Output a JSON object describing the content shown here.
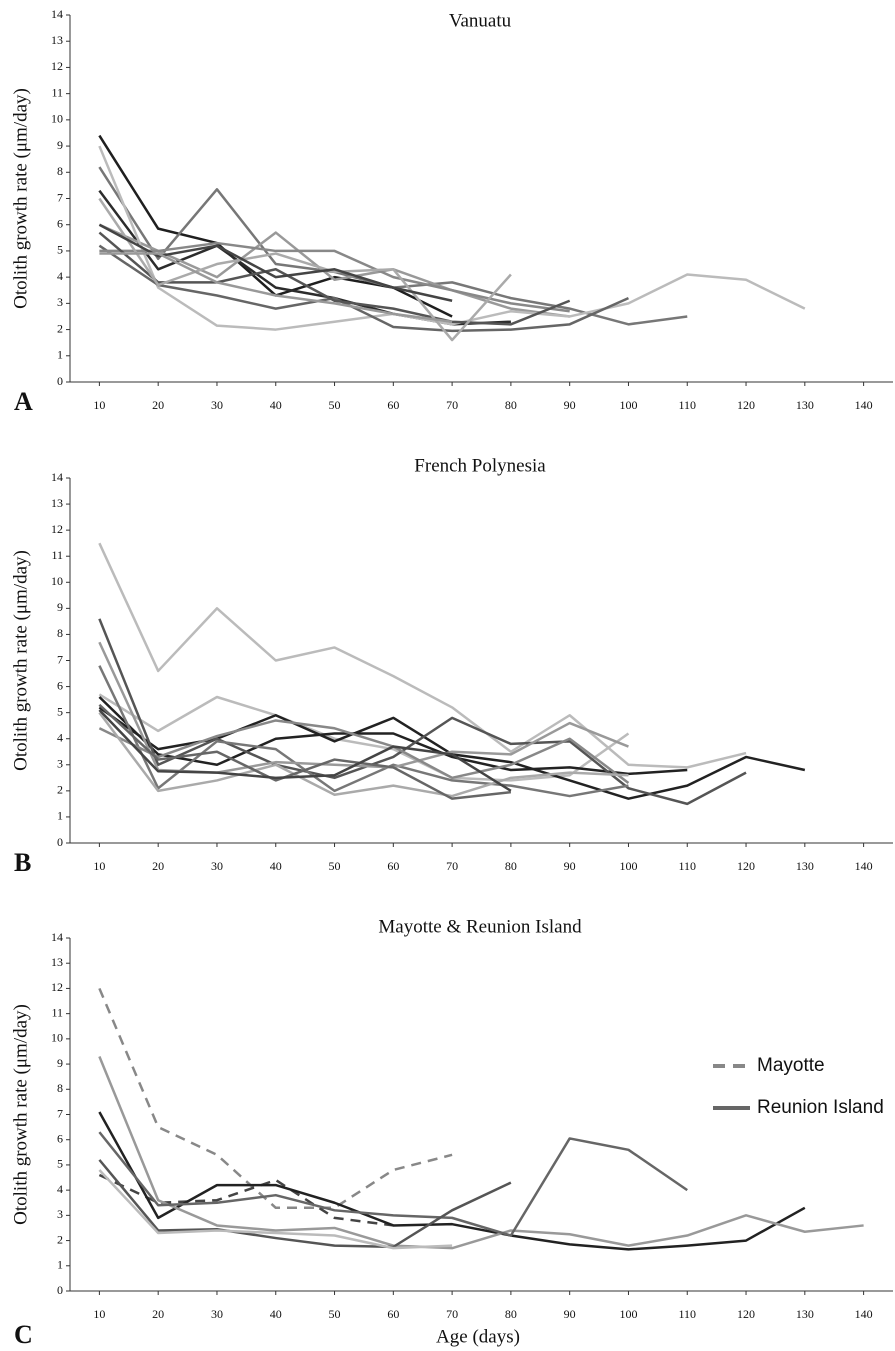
{
  "chart_data": [
    {
      "type": "line",
      "title": "Vanuatu",
      "panel_label": "A",
      "ylabel": "Otolith growth rate (μm/day)",
      "x": [
        10,
        20,
        30,
        40,
        50,
        60,
        70,
        80,
        90,
        100,
        110,
        120,
        130,
        140
      ],
      "xlim": [
        5,
        145
      ],
      "xticks": [
        10,
        20,
        30,
        40,
        50,
        60,
        70,
        80,
        90,
        100,
        110,
        120,
        130,
        140
      ],
      "ylim": [
        0,
        14
      ],
      "yticks": [
        0,
        1,
        2,
        3,
        4,
        5,
        6,
        7,
        8,
        9,
        10,
        11,
        12,
        13,
        14
      ],
      "series": [
        {
          "color": "#1f1f1f",
          "values": [
            9.4,
            5.85,
            5.3,
            3.3,
            4.0,
            3.6,
            2.5,
            null,
            null,
            null,
            null,
            null,
            null,
            null
          ]
        },
        {
          "color": "#2c2c2c",
          "values": [
            7.3,
            4.3,
            5.2,
            3.6,
            3.2,
            2.6,
            2.2,
            2.3,
            null,
            null,
            null,
            null,
            null,
            null
          ]
        },
        {
          "color": "#777777",
          "values": [
            8.2,
            4.7,
            7.35,
            4.5,
            4.2,
            3.6,
            3.8,
            3.2,
            2.8,
            2.2,
            2.5,
            null,
            null,
            null
          ]
        },
        {
          "color": "#999999",
          "values": [
            6.0,
            5.0,
            4.0,
            5.7,
            3.9,
            4.3,
            3.5,
            2.8,
            2.5,
            null,
            null,
            null,
            null,
            null
          ]
        },
        {
          "color": "#bbbbbb",
          "values": [
            9.0,
            3.6,
            2.15,
            2.0,
            2.3,
            2.6,
            2.2,
            2.7,
            2.5,
            3.0,
            4.1,
            3.9,
            2.8,
            null
          ]
        },
        {
          "color": "#666666",
          "values": [
            5.2,
            3.7,
            3.3,
            2.8,
            3.2,
            2.1,
            1.95,
            2.0,
            2.2,
            3.2,
            null,
            null,
            null,
            null
          ]
        },
        {
          "color": "#888888",
          "values": [
            5.0,
            5.0,
            5.3,
            5.0,
            5.0,
            4.0,
            3.5,
            3.0,
            2.7,
            null,
            null,
            null,
            null,
            null
          ]
        },
        {
          "color": "#555555",
          "values": [
            5.7,
            3.8,
            3.8,
            4.3,
            3.1,
            2.8,
            2.3,
            2.2,
            3.1,
            null,
            null,
            null,
            null,
            null
          ]
        },
        {
          "color": "#aaaaaa",
          "values": [
            7.0,
            3.7,
            4.5,
            4.9,
            4.2,
            4.3,
            1.6,
            4.1,
            null,
            null,
            null,
            null,
            null,
            null
          ]
        },
        {
          "color": "#444444",
          "values": [
            6.0,
            4.8,
            5.2,
            4.0,
            4.3,
            3.6,
            3.1,
            null,
            null,
            null,
            null,
            null,
            null,
            null
          ]
        },
        {
          "color": "#999999",
          "values": [
            4.9,
            4.9,
            3.8,
            3.3,
            3.0,
            2.6,
            2.3,
            null,
            null,
            null,
            null,
            null,
            null,
            null
          ]
        }
      ]
    },
    {
      "type": "line",
      "title": "French Polynesia",
      "panel_label": "B",
      "ylabel": "Otolith growth rate (μm/day)",
      "x": [
        10,
        20,
        30,
        40,
        50,
        60,
        70,
        80,
        90,
        100,
        110,
        120,
        130,
        140
      ],
      "xlim": [
        5,
        145
      ],
      "xticks": [
        10,
        20,
        30,
        40,
        50,
        60,
        70,
        80,
        90,
        100,
        110,
        120,
        130,
        140
      ],
      "ylim": [
        0,
        14
      ],
      "yticks": [
        0,
        1,
        2,
        3,
        4,
        5,
        6,
        7,
        8,
        9,
        10,
        11,
        12,
        13,
        14
      ],
      "series": [
        {
          "color": "#bbbbbb",
          "values": [
            11.5,
            6.6,
            9.0,
            7.0,
            7.5,
            6.4,
            5.2,
            3.5,
            4.9,
            3.0,
            2.9,
            3.45,
            null,
            null
          ]
        },
        {
          "color": "#bbbbbb",
          "values": [
            5.7,
            4.3,
            5.6,
            4.9,
            4.0,
            3.6,
            2.5,
            2.4,
            2.6,
            4.2,
            null,
            null,
            null,
            null
          ]
        },
        {
          "color": "#222222",
          "values": [
            5.6,
            3.4,
            3.0,
            4.0,
            4.2,
            4.2,
            3.3,
            2.8,
            2.9,
            2.65,
            2.8,
            null,
            null,
            null
          ]
        },
        {
          "color": "#222222",
          "values": [
            5.2,
            3.6,
            4.0,
            4.9,
            3.9,
            4.8,
            3.4,
            3.1,
            2.4,
            1.7,
            2.2,
            3.3,
            2.8,
            null
          ]
        },
        {
          "color": "#555555",
          "values": [
            8.6,
            3.0,
            4.0,
            3.0,
            2.5,
            3.3,
            4.8,
            3.8,
            3.9,
            2.1,
            1.5,
            2.7,
            null,
            null
          ]
        },
        {
          "color": "#777777",
          "values": [
            6.8,
            2.1,
            3.9,
            3.6,
            2.0,
            3.0,
            2.4,
            2.2,
            1.8,
            2.2,
            null,
            null,
            null,
            null
          ]
        },
        {
          "color": "#999999",
          "values": [
            7.7,
            2.8,
            2.7,
            3.1,
            3.0,
            2.9,
            3.5,
            3.4,
            4.6,
            3.7,
            null,
            null,
            null,
            null
          ]
        },
        {
          "color": "#888888",
          "values": [
            4.4,
            3.3,
            4.1,
            4.7,
            4.4,
            3.7,
            2.5,
            3.0,
            4.0,
            2.3,
            null,
            null,
            null,
            null
          ]
        },
        {
          "color": "#aaaaaa",
          "values": [
            5.0,
            2.0,
            2.4,
            3.0,
            1.85,
            2.2,
            1.8,
            2.5,
            2.7,
            2.6,
            null,
            null,
            null,
            null
          ]
        },
        {
          "color": "#666666",
          "values": [
            5.3,
            3.2,
            3.5,
            2.4,
            3.2,
            2.9,
            1.7,
            1.95,
            null,
            null,
            null,
            null,
            null,
            null
          ]
        },
        {
          "color": "#444444",
          "values": [
            5.1,
            2.75,
            2.7,
            2.5,
            2.6,
            3.7,
            3.4,
            2.0,
            null,
            null,
            null,
            null,
            null,
            null
          ]
        }
      ]
    },
    {
      "type": "line",
      "title": "Mayotte & Reunion Island",
      "panel_label": "C",
      "ylabel": "Otolith growth rate (μm/day)",
      "xlabel": "Age (days)",
      "x": [
        10,
        20,
        30,
        40,
        50,
        60,
        70,
        80,
        90,
        100,
        110,
        120,
        130,
        140
      ],
      "xlim": [
        5,
        145
      ],
      "xticks": [
        10,
        20,
        30,
        40,
        50,
        60,
        70,
        80,
        90,
        100,
        110,
        120,
        130,
        140
      ],
      "ylim": [
        0,
        14
      ],
      "yticks": [
        0,
        1,
        2,
        3,
        4,
        5,
        6,
        7,
        8,
        9,
        10,
        11,
        12,
        13,
        14
      ],
      "legend": [
        {
          "label": "Mayotte",
          "style": "dashed",
          "color": "#888888"
        },
        {
          "label": "Reunion Island",
          "style": "solid",
          "color": "#666666"
        }
      ],
      "series": [
        {
          "color": "#888888",
          "style": "dashed",
          "values": [
            12.0,
            6.5,
            5.4,
            3.3,
            3.3,
            4.8,
            5.4,
            null,
            null,
            null,
            null,
            null,
            null,
            null
          ]
        },
        {
          "color": "#444444",
          "style": "dashed",
          "values": [
            4.6,
            3.5,
            3.6,
            4.4,
            2.9,
            2.6,
            null,
            null,
            null,
            null,
            null,
            null,
            null,
            null
          ]
        },
        {
          "color": "#222222",
          "style": "solid",
          "values": [
            7.1,
            2.9,
            4.2,
            4.2,
            3.5,
            2.6,
            2.65,
            2.2,
            1.85,
            1.65,
            1.8,
            2.0,
            3.3,
            null
          ]
        },
        {
          "color": "#999999",
          "style": "solid",
          "values": [
            9.3,
            3.6,
            2.6,
            2.4,
            2.5,
            1.8,
            1.7,
            2.4,
            2.25,
            1.8,
            2.2,
            3.0,
            2.35,
            2.6
          ]
        },
        {
          "color": "#666666",
          "style": "solid",
          "values": [
            6.3,
            3.4,
            3.5,
            3.8,
            3.2,
            3.0,
            2.9,
            2.2,
            6.05,
            5.6,
            4.0,
            null,
            null,
            null
          ]
        },
        {
          "color": "#555555",
          "style": "solid",
          "values": [
            5.2,
            2.4,
            2.45,
            2.1,
            1.8,
            1.75,
            3.2,
            4.3,
            null,
            null,
            null,
            null,
            null,
            null
          ]
        },
        {
          "color": "#bbbbbb",
          "style": "solid",
          "values": [
            4.8,
            2.3,
            2.4,
            2.3,
            2.2,
            1.7,
            1.8,
            null,
            null,
            null,
            null,
            null,
            null,
            null
          ]
        }
      ]
    }
  ]
}
